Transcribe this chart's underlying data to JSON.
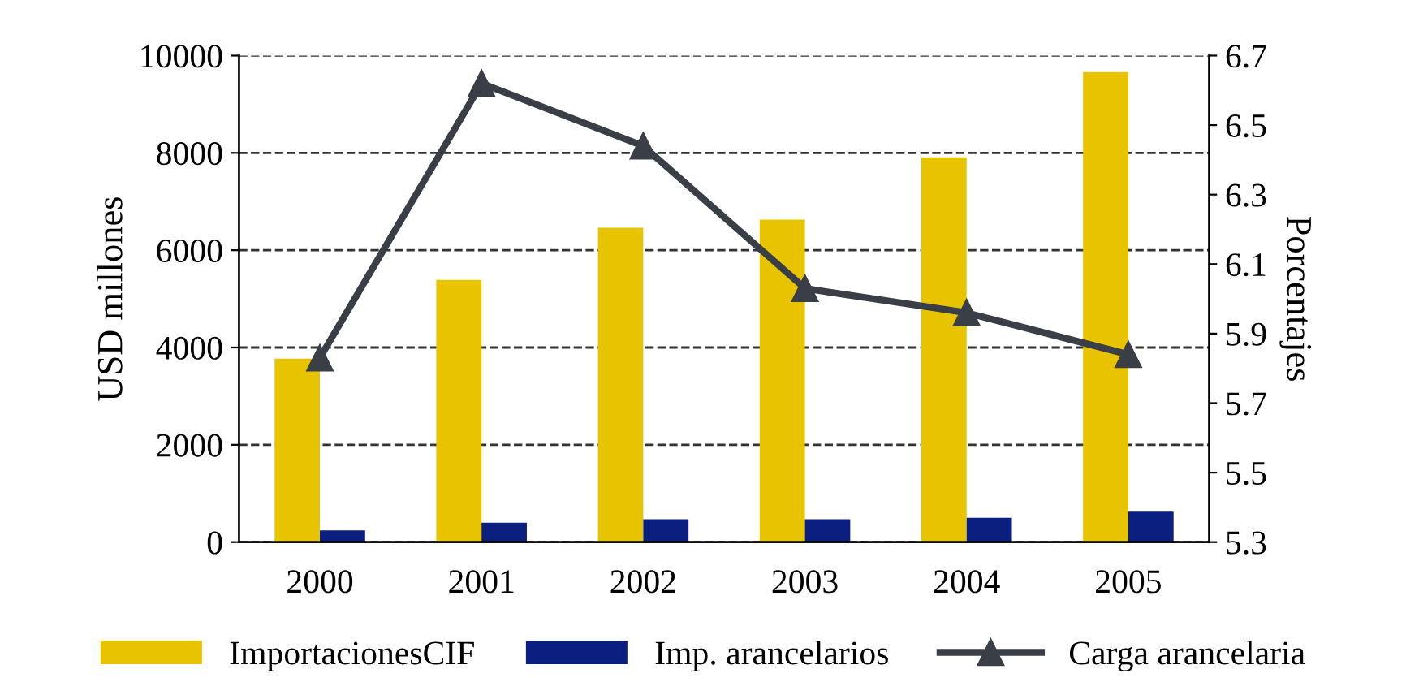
{
  "chart_data": {
    "type": "bar",
    "categories": [
      "2000",
      "2001",
      "2002",
      "2003",
      "2004",
      "2005"
    ],
    "ylabel": "USD millones",
    "y2label": "Porcentajes",
    "series": [
      {
        "name": "ImportacionesCIF",
        "color": "#e8c400",
        "values": [
          3770,
          5390,
          6460,
          6630,
          7910,
          9660
        ]
      },
      {
        "name": "Imp. arancelarios",
        "color": "#0a1f80",
        "values": [
          240,
          400,
          470,
          470,
          500,
          640
        ]
      },
      {
        "name": "Carga arancelaria",
        "type": "line",
        "axis": "y2",
        "color": "#3a3f47",
        "marker": "triangle",
        "values": [
          5.83,
          6.62,
          6.44,
          6.03,
          5.96,
          5.84
        ]
      }
    ],
    "ylim": [
      0,
      10000
    ],
    "yticks": [
      0,
      2000,
      4000,
      6000,
      8000,
      10000
    ],
    "y2lim": [
      5.3,
      6.7
    ],
    "y2ticks": [
      {
        "value": 5.3,
        "label": "5.3"
      },
      {
        "value": 5.5,
        "label": "5.5"
      },
      {
        "value": 5.7,
        "label": "5.7"
      },
      {
        "value": 5.9,
        "label": "5.9"
      },
      {
        "value": 6.1,
        "label": "6.1"
      },
      {
        "value": 6.3,
        "label": "6.3"
      },
      {
        "value": 6.5,
        "label": "6.5"
      },
      {
        "value": 6.7,
        "label": "6.7"
      }
    ],
    "grid": "y",
    "legend": "bottom"
  }
}
